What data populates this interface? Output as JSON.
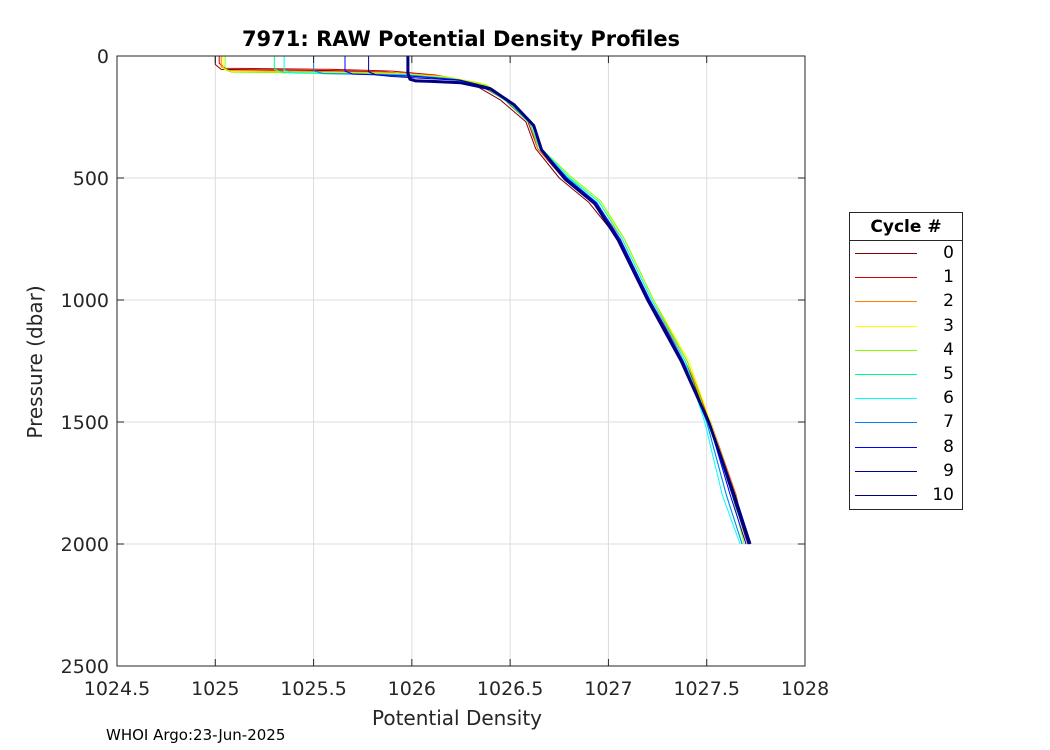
{
  "chart_data": {
    "type": "line",
    "title": "7971: RAW Potential Density Profiles",
    "xlabel": "Potential Density",
    "ylabel": "Pressure (dbar)",
    "xlim": [
      1024.5,
      1028
    ],
    "ylim": [
      0,
      2500
    ],
    "y_reversed": true,
    "xticks": [
      "1024.5",
      "1025",
      "1025.5",
      "1026",
      "1026.5",
      "1027",
      "1027.5",
      "1028"
    ],
    "yticks": [
      "0",
      "500",
      "1000",
      "1500",
      "2000",
      "2500"
    ],
    "grid": true,
    "legend": {
      "title": "Cycle #",
      "placement": "right"
    },
    "series": [
      {
        "name": "0",
        "color": "#800000",
        "x": [
          1025.0,
          1025.0,
          1025.03,
          1025.6,
          1025.85,
          1026.1,
          1026.3,
          1026.45,
          1026.58,
          1026.63,
          1026.75,
          1026.9,
          1027.05,
          1027.2,
          1027.38,
          1027.52,
          1027.65,
          1027.7
        ],
        "y": [
          0,
          35,
          55,
          60,
          65,
          80,
          110,
          180,
          270,
          380,
          500,
          600,
          750,
          1000,
          1250,
          1500,
          1800,
          2000
        ]
      },
      {
        "name": "1",
        "color": "#cc0000",
        "x": [
          1025.02,
          1025.02,
          1025.05,
          1025.6,
          1025.9,
          1026.12,
          1026.32,
          1026.47,
          1026.59,
          1026.64,
          1026.77,
          1026.92,
          1027.06,
          1027.21,
          1027.39,
          1027.52,
          1027.64,
          1027.71
        ],
        "y": [
          0,
          30,
          50,
          55,
          62,
          78,
          108,
          178,
          268,
          380,
          500,
          600,
          750,
          1000,
          1250,
          1500,
          1800,
          2000
        ]
      },
      {
        "name": "2",
        "color": "#ff8000",
        "x": [
          1025.03,
          1025.03,
          1025.06,
          1025.6,
          1025.9,
          1026.15,
          1026.35,
          1026.48,
          1026.6,
          1026.64,
          1026.78,
          1026.93,
          1027.07,
          1027.22,
          1027.4,
          1027.52,
          1027.65,
          1027.7
        ],
        "y": [
          0,
          45,
          60,
          64,
          68,
          82,
          112,
          180,
          270,
          380,
          500,
          598,
          750,
          1000,
          1250,
          1500,
          1800,
          2000
        ]
      },
      {
        "name": "3",
        "color": "#ffff00",
        "x": [
          1025.04,
          1025.04,
          1025.07,
          1025.6,
          1025.95,
          1026.2,
          1026.38,
          1026.5,
          1026.61,
          1026.66,
          1026.8,
          1026.95,
          1027.08,
          1027.23,
          1027.41,
          1027.52,
          1027.64,
          1027.7
        ],
        "y": [
          0,
          50,
          64,
          68,
          72,
          88,
          118,
          185,
          272,
          380,
          495,
          595,
          748,
          1000,
          1250,
          1500,
          1800,
          2000
        ]
      },
      {
        "name": "4",
        "color": "#80ff00",
        "x": [
          1025.05,
          1025.05,
          1025.08,
          1025.6,
          1025.95,
          1026.2,
          1026.38,
          1026.5,
          1026.61,
          1026.66,
          1026.81,
          1026.96,
          1027.08,
          1027.23,
          1027.4,
          1027.51,
          1027.63,
          1027.69
        ],
        "y": [
          0,
          52,
          66,
          70,
          74,
          90,
          120,
          188,
          275,
          380,
          495,
          594,
          748,
          1000,
          1250,
          1500,
          1800,
          2000
        ]
      },
      {
        "name": "5",
        "color": "#00ff80",
        "x": [
          1025.3,
          1025.3,
          1025.35,
          1025.7,
          1025.95,
          1026.18,
          1026.36,
          1026.49,
          1026.6,
          1026.65,
          1026.79,
          1026.95,
          1027.07,
          1027.22,
          1027.39,
          1027.5,
          1027.6,
          1027.68
        ],
        "y": [
          0,
          55,
          68,
          72,
          76,
          92,
          122,
          190,
          276,
          380,
          496,
          596,
          750,
          1000,
          1250,
          1500,
          1800,
          2000
        ]
      },
      {
        "name": "6",
        "color": "#00ffff",
        "x": [
          1025.35,
          1025.35,
          1025.4,
          1025.75,
          1025.98,
          1026.2,
          1026.37,
          1026.5,
          1026.61,
          1026.66,
          1026.8,
          1026.95,
          1027.07,
          1027.22,
          1027.39,
          1027.49,
          1027.58,
          1027.67
        ],
        "y": [
          0,
          58,
          70,
          74,
          78,
          94,
          124,
          192,
          278,
          380,
          497,
          597,
          750,
          1000,
          1250,
          1500,
          1800,
          2000
        ]
      },
      {
        "name": "7",
        "color": "#0080ff",
        "x": [
          1025.5,
          1025.5,
          1025.55,
          1025.8,
          1026.0,
          1026.22,
          1026.38,
          1026.51,
          1026.61,
          1026.66,
          1026.79,
          1026.94,
          1027.06,
          1027.21,
          1027.38,
          1027.5,
          1027.6,
          1027.68
        ],
        "y": [
          0,
          60,
          72,
          76,
          80,
          96,
          126,
          194,
          279,
          380,
          500,
          600,
          752,
          1000,
          1250,
          1500,
          1800,
          2000
        ]
      },
      {
        "name": "8",
        "color": "#0000ff",
        "x": [
          1025.66,
          1025.66,
          1025.7,
          1025.85,
          1026.02,
          1026.24,
          1026.39,
          1026.52,
          1026.62,
          1026.66,
          1026.79,
          1026.94,
          1027.06,
          1027.21,
          1027.38,
          1027.51,
          1027.62,
          1027.7
        ],
        "y": [
          0,
          62,
          74,
          78,
          84,
          98,
          128,
          196,
          280,
          382,
          502,
          602,
          752,
          1000,
          1250,
          1500,
          1800,
          2000
        ]
      },
      {
        "name": "9",
        "color": "#0000a0",
        "x": [
          1025.78,
          1025.78,
          1025.82,
          1025.9,
          1026.03,
          1026.25,
          1026.4,
          1026.52,
          1026.62,
          1026.66,
          1026.78,
          1026.93,
          1027.05,
          1027.2,
          1027.37,
          1027.51,
          1027.63,
          1027.71
        ],
        "y": [
          0,
          65,
          78,
          84,
          90,
          100,
          130,
          198,
          282,
          383,
          505,
          605,
          755,
          1000,
          1250,
          1500,
          1800,
          2000
        ]
      },
      {
        "name": "10",
        "color": "#000080",
        "x": [
          1025.98,
          1025.98,
          1025.99,
          1026.02,
          1026.1,
          1026.25,
          1026.4,
          1026.52,
          1026.62,
          1026.66,
          1026.78,
          1026.93,
          1027.05,
          1027.2,
          1027.37,
          1027.51,
          1027.64,
          1027.72
        ],
        "y": [
          0,
          70,
          95,
          102,
          104,
          110,
          135,
          200,
          285,
          385,
          505,
          605,
          755,
          1000,
          1250,
          1500,
          1800,
          2000
        ]
      }
    ]
  },
  "footer": {
    "note": "WHOI Argo:23-Jun-2025"
  }
}
